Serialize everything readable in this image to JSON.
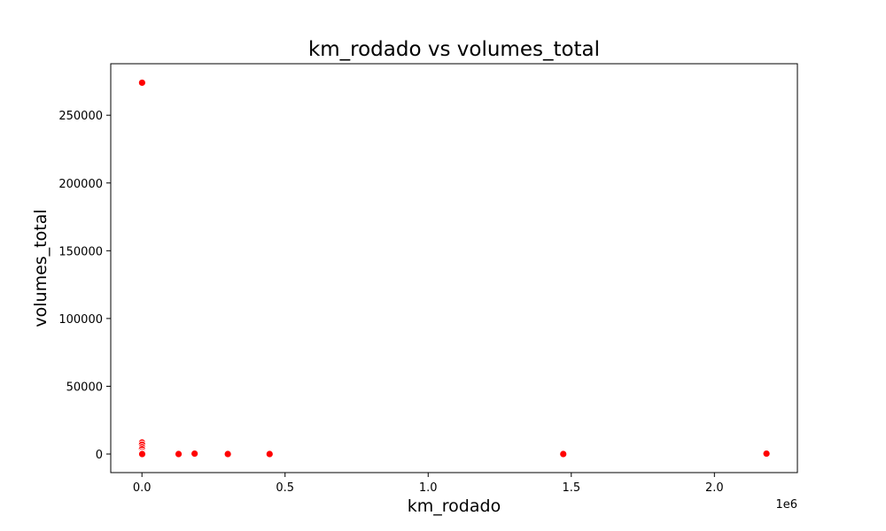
{
  "chart_data": {
    "type": "scatter",
    "title": "km_rodado vs volumes_total",
    "xlabel": "km_rodado",
    "ylabel": "volumes_total",
    "x_offset_label": "1e6",
    "xlim": [
      -0.109,
      2.29
    ],
    "ylim": [
      -13700,
      288000
    ],
    "x_ticks": [
      0.0,
      0.5,
      1.0,
      1.5,
      2.0
    ],
    "x_tick_labels": [
      "0.0",
      "0.5",
      "1.0",
      "1.5",
      "2.0"
    ],
    "y_ticks": [
      0,
      50000,
      100000,
      150000,
      200000,
      250000
    ],
    "y_tick_labels": [
      "0",
      "50000",
      "100000",
      "150000",
      "200000",
      "250000"
    ],
    "grid": false,
    "marker_color": "#ff0000",
    "marker_edge_color": "#ffffff",
    "points": [
      {
        "x": 0.0005,
        "y": 274000
      },
      {
        "x": 0.0003,
        "y": 8500
      },
      {
        "x": 0.0004,
        "y": 7000
      },
      {
        "x": 0.0006,
        "y": 5000
      },
      {
        "x": 0.0002,
        "y": 3500
      },
      {
        "x": 0.0005,
        "y": 1800
      },
      {
        "x": 0.0003,
        "y": 800
      },
      {
        "x": 0.0004,
        "y": 200
      },
      {
        "x": 0.0008,
        "y": 0
      },
      {
        "x": 0.128,
        "y": 0
      },
      {
        "x": 0.184,
        "y": 300
      },
      {
        "x": 0.3,
        "y": 0
      },
      {
        "x": 0.446,
        "y": 0
      },
      {
        "x": 1.472,
        "y": 0
      },
      {
        "x": 2.182,
        "y": 300
      }
    ]
  }
}
